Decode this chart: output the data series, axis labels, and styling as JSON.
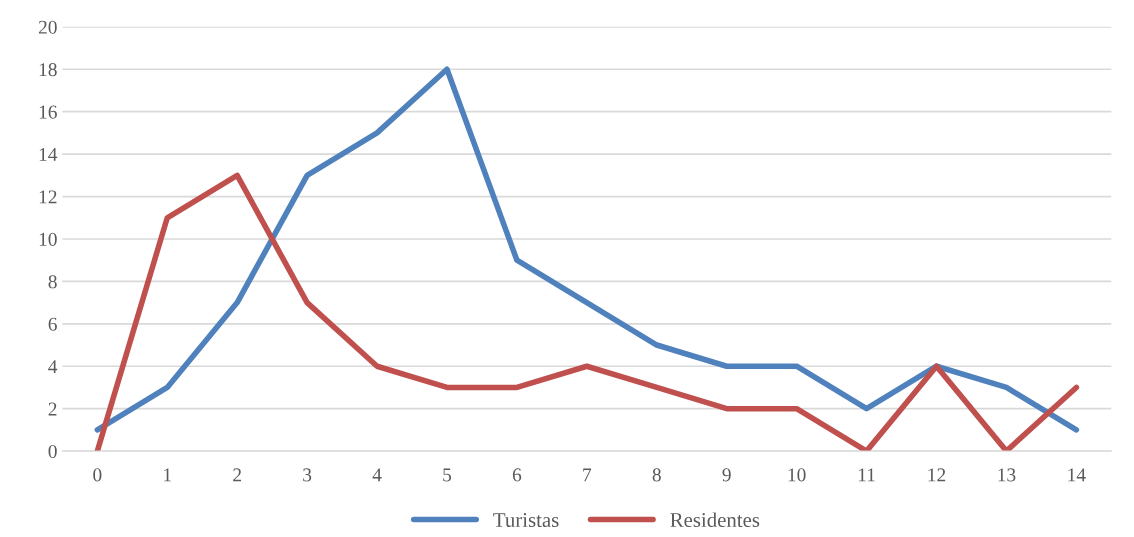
{
  "chart_data": {
    "type": "line",
    "categories": [
      "0",
      "1",
      "2",
      "3",
      "4",
      "5",
      "6",
      "7",
      "8",
      "9",
      "10",
      "11",
      "12",
      "13",
      "14"
    ],
    "series": [
      {
        "name": "Turistas",
        "color": "#4f81bd",
        "values": [
          1,
          3,
          7,
          13,
          15,
          18,
          9,
          7,
          5,
          4,
          4,
          2,
          4,
          3,
          1
        ]
      },
      {
        "name": "Residentes",
        "color": "#c0504d",
        "values": [
          0,
          11,
          13,
          7,
          4,
          3,
          3,
          4,
          3,
          2,
          2,
          0,
          4,
          0,
          3
        ]
      }
    ],
    "ylim": [
      0,
      20
    ],
    "yticks": [
      0,
      2,
      4,
      6,
      8,
      10,
      12,
      14,
      16,
      18,
      20
    ],
    "grid": "y",
    "legend": "bottom",
    "marker": "none",
    "line_style": "solid"
  }
}
